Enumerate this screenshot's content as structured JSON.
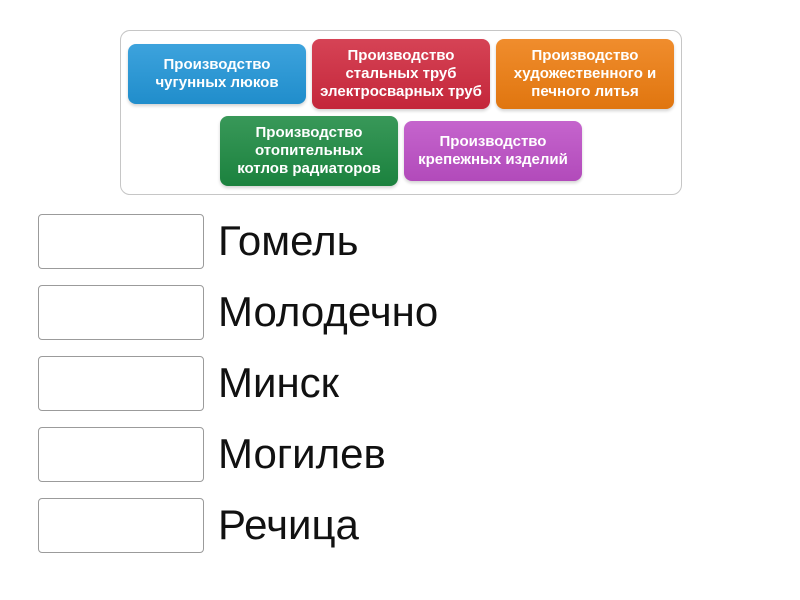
{
  "activity": {
    "type_label": "match-up",
    "tile_pool": {
      "tiles": [
        {
          "label": "Производство чугунных люков",
          "color": "#2296d8"
        },
        {
          "label": "Производство стальных труб электросварных труб",
          "color": "#d0293e"
        },
        {
          "label": "Производство художественного и печного литья",
          "color": "#ee7d10"
        },
        {
          "label": "Производство отопительных котлов радиаторов",
          "color": "#1d8a42"
        },
        {
          "label": "Производство крепежных изделий",
          "color": "#bd4fc6"
        }
      ]
    },
    "match_list": {
      "rows": [
        {
          "city": "Гомель"
        },
        {
          "city": "Молодечно"
        },
        {
          "city": "Минск"
        },
        {
          "city": "Могилев"
        },
        {
          "city": "Речица"
        }
      ]
    }
  }
}
